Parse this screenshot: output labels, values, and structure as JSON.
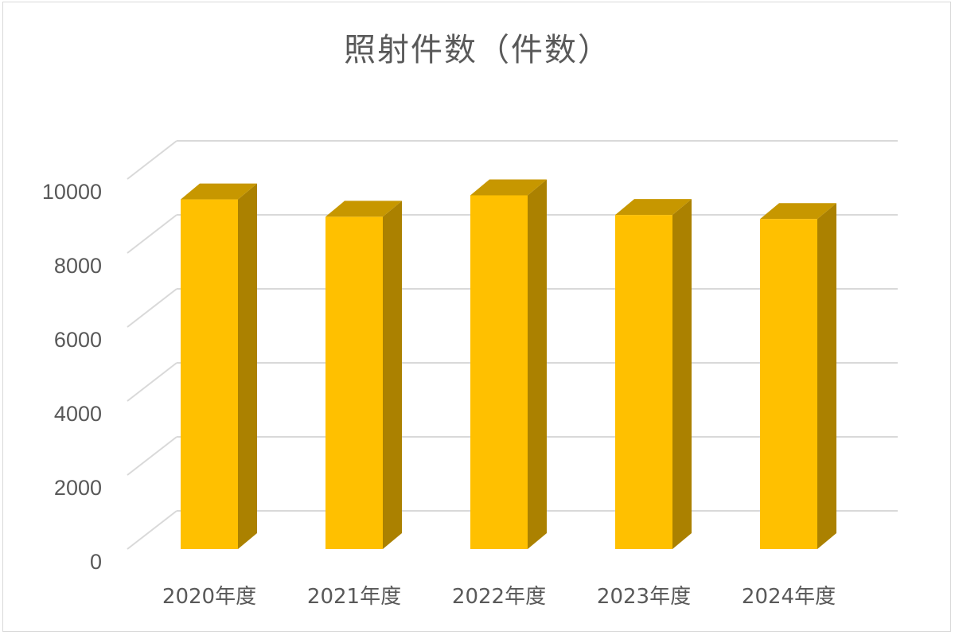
{
  "chart_data": {
    "type": "bar",
    "title": "照射件数（件数）",
    "xlabel": "",
    "ylabel": "",
    "categories": [
      "2020年度",
      "2021年度",
      "2022年度",
      "2023年度",
      "2024年度"
    ],
    "values": [
      9450,
      8980,
      9560,
      9030,
      8920
    ],
    "ylim": [
      0,
      10000
    ],
    "yticks": [
      "0",
      "2000",
      "4000",
      "6000",
      "8000",
      "10000"
    ],
    "grid": true,
    "legend": "none",
    "colors": {
      "front": "#FFC000",
      "side": "#AB8100",
      "top": "#C79700",
      "grid": "#d9d9d9",
      "text": "#595959"
    }
  }
}
